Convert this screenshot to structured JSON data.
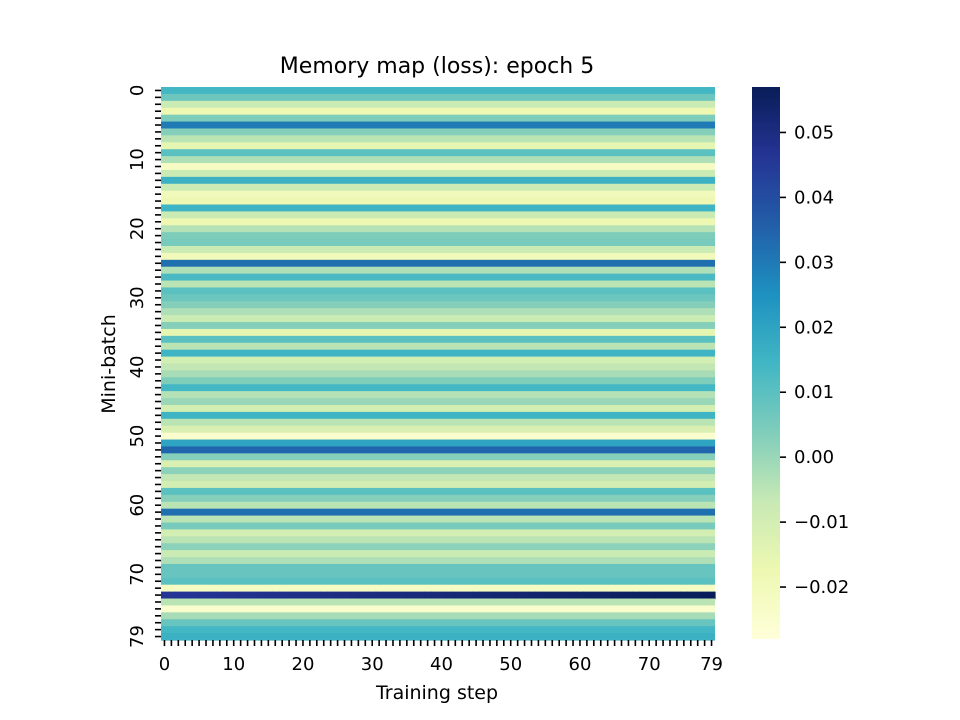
{
  "chart_data": {
    "type": "heatmap",
    "title": "Memory map (loss): epoch 5",
    "xlabel": "Training step",
    "ylabel": "Mini-batch",
    "rows": 80,
    "cols": 80,
    "x_tick_labels": [
      "0",
      "10",
      "20",
      "30",
      "40",
      "50",
      "60",
      "70",
      "79"
    ],
    "x_tick_values": [
      0,
      10,
      20,
      30,
      40,
      50,
      60,
      70,
      79
    ],
    "y_tick_labels": [
      "0",
      "10",
      "20",
      "30",
      "40",
      "50",
      "60",
      "70",
      "79"
    ],
    "y_tick_values": [
      0,
      10,
      20,
      30,
      40,
      50,
      60,
      70,
      79
    ],
    "colormap": "YlGnBu",
    "color_range": [
      -0.028,
      0.057
    ],
    "colorbar_ticks": [
      0.05,
      0.04,
      0.03,
      0.02,
      0.01,
      0.0,
      -0.01,
      -0.02
    ],
    "colorbar_tick_labels": [
      "0.05",
      "0.04",
      "0.03",
      "0.02",
      "0.01",
      "0.00",
      "−0.01",
      "−0.02"
    ],
    "row_values": [
      0.014,
      0.007,
      -0.008,
      -0.018,
      0.004,
      0.03,
      0.003,
      -0.005,
      -0.015,
      0.01,
      -0.003,
      -0.022,
      -0.008,
      0.016,
      -0.008,
      -0.02,
      -0.018,
      0.015,
      -0.008,
      -0.018,
      -0.004,
      0.004,
      0.005,
      -0.008,
      -0.02,
      0.032,
      -0.003,
      0.013,
      -0.005,
      0.01,
      0.007,
      0.003,
      -0.003,
      -0.008,
      0.003,
      -0.015,
      0.01,
      -0.005,
      0.015,
      -0.01,
      -0.006,
      -0.002,
      0.004,
      0.014,
      -0.004,
      0.0,
      -0.01,
      0.015,
      -0.005,
      -0.012,
      -0.025,
      0.02,
      0.034,
      0.003,
      -0.012,
      0.002,
      -0.006,
      -0.01,
      0.01,
      0.003,
      -0.005,
      0.032,
      -0.005,
      0.005,
      -0.01,
      -0.005,
      0.002,
      -0.008,
      -0.003,
      0.008,
      0.008,
      0.01,
      -0.022,
      0.05,
      -0.005,
      -0.025,
      -0.002,
      0.008,
      0.014,
      0.016
    ],
    "row_trend": {
      "73": [
        0.046,
        0.057
      ]
    }
  }
}
